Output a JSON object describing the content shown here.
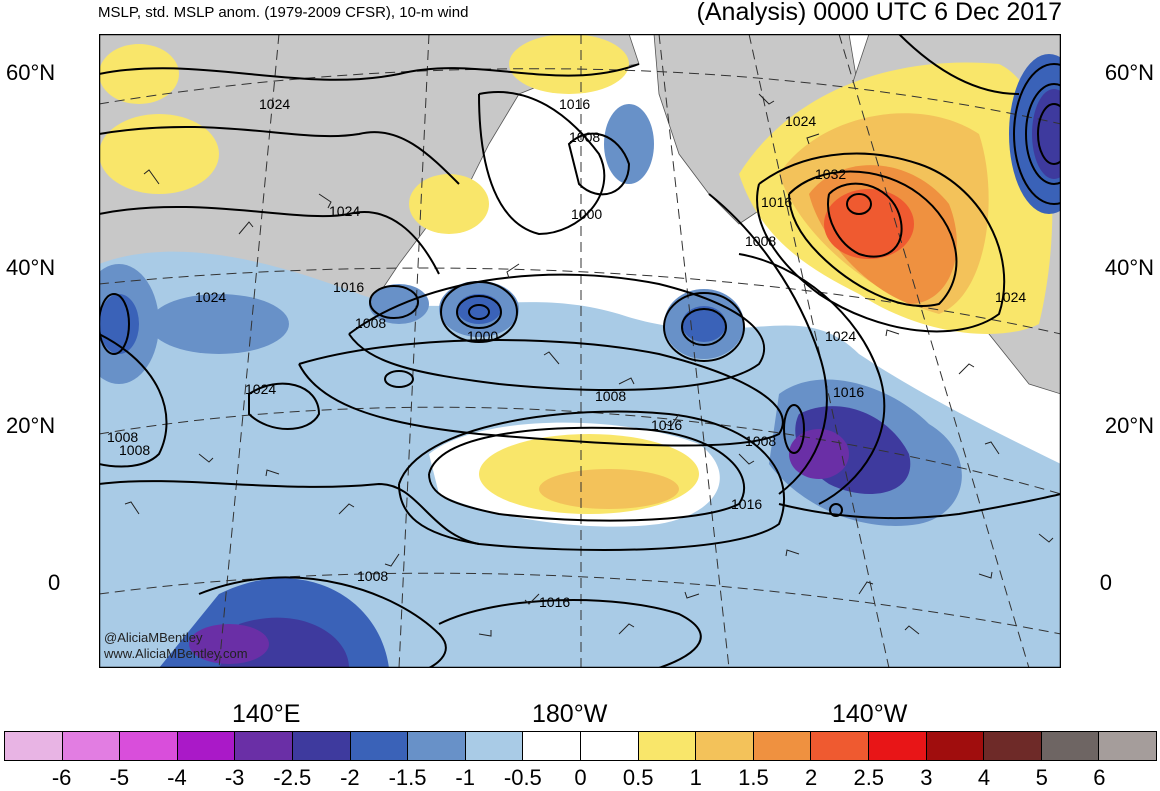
{
  "header": {
    "left": "MSLP, std. MSLP anom. (1979-2009 CFSR), 10-m wind",
    "right": "(Analysis) 0000 UTC 6 Dec 2017"
  },
  "lat_labels": [
    "60°N",
    "40°N",
    "20°N",
    "0"
  ],
  "lon_labels": [
    "140°E",
    "180°W",
    "140°W"
  ],
  "isobar_labels": [
    "1024",
    "1024",
    "1016",
    "1008",
    "1000",
    "1024",
    "1032",
    "1016",
    "1008",
    "1024",
    "1024",
    "1016",
    "1008",
    "1000",
    "1024",
    "1008",
    "1016",
    "1024",
    "1008",
    "1016",
    "1008",
    "1016",
    "1016",
    "1008",
    "1008"
  ],
  "credit": {
    "handle": "@AliciaMBentley",
    "site": "www.AliciaMBentley.com"
  },
  "colorbar": {
    "colors": [
      "#e8b4e4",
      "#e27de2",
      "#d94edb",
      "#aa19c8",
      "#6a2fa6",
      "#3e3a9e",
      "#3a62b8",
      "#6891c8",
      "#a9cbe6",
      "#ffffff",
      "#ffffff",
      "#f9e66a",
      "#f3c25a",
      "#ef9140",
      "#ef5a30",
      "#e81517",
      "#a00d0d",
      "#6e2a28",
      "#6e6563",
      "#a59d9b"
    ],
    "ticks": [
      "-6",
      "-5",
      "-4",
      "-3",
      "-2.5",
      "-2",
      "-1.5",
      "-1",
      "-0.5",
      "0",
      "0.5",
      "1",
      "1.5",
      "2",
      "2.5",
      "3",
      "4",
      "5",
      "6"
    ]
  }
}
